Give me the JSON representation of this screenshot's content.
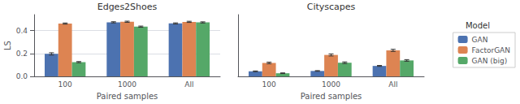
{
  "chart_data": [
    {
      "type": "bar",
      "title": "Edges2Shoes",
      "xlabel": "Paired samples",
      "ylabel": "LS",
      "categories": [
        "100",
        "1000",
        "All"
      ],
      "series": [
        {
          "name": "GAN",
          "color": "#4c72b0",
          "values": [
            0.197,
            0.473,
            0.463
          ],
          "errors": [
            0.01,
            0.005,
            0.005
          ]
        },
        {
          "name": "FactorGAN",
          "color": "#dd8452",
          "values": [
            0.462,
            0.478,
            0.477
          ],
          "errors": [
            0.005,
            0.005,
            0.005
          ]
        },
        {
          "name": "GAN (big)",
          "color": "#55a868",
          "values": [
            0.125,
            0.435,
            0.472
          ],
          "errors": [
            0.005,
            0.005,
            0.005
          ]
        }
      ],
      "ylim": [
        0.0,
        0.54
      ],
      "yticks": [
        {
          "value": 0.0,
          "label": "0.0"
        },
        0.2,
        0.4
      ],
      "grid": true
    },
    {
      "type": "bar",
      "title": "Cityscapes",
      "xlabel": "Paired samples",
      "categories": [
        "100",
        "1000",
        "All"
      ],
      "series": [
        {
          "name": "GAN",
          "color": "#4c72b0",
          "values": [
            0.045,
            0.048,
            0.092
          ],
          "errors": [
            0.003,
            0.003,
            0.004
          ]
        },
        {
          "name": "FactorGAN",
          "color": "#dd8452",
          "values": [
            0.118,
            0.188,
            0.228
          ],
          "errors": [
            0.007,
            0.009,
            0.009
          ]
        },
        {
          "name": "GAN (big)",
          "color": "#55a868",
          "values": [
            0.028,
            0.12,
            0.14
          ],
          "errors": [
            0.003,
            0.007,
            0.007
          ]
        }
      ],
      "ylim": [
        0.0,
        0.54
      ],
      "yticks": [],
      "tick_labels": "x",
      "grid": false,
      "legend": "right",
      "legend_title": "Model"
    }
  ]
}
